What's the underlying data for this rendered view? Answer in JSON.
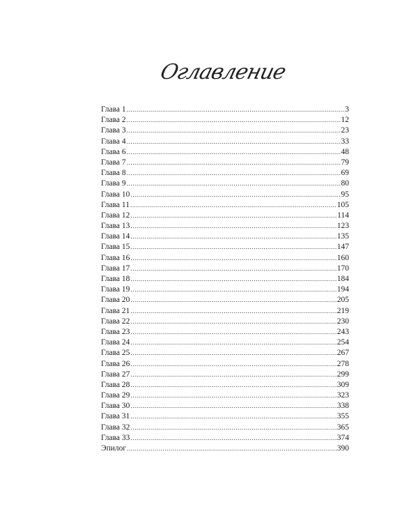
{
  "title": "Оглавление",
  "entries": [
    {
      "label": "Глава 1",
      "page": "3"
    },
    {
      "label": "Глава 2",
      "page": "12"
    },
    {
      "label": "Глава 3",
      "page": "23"
    },
    {
      "label": "Глава 4",
      "page": "33"
    },
    {
      "label": "Глава 6",
      "page": "48"
    },
    {
      "label": "Глава 7",
      "page": "79"
    },
    {
      "label": "Глава 8",
      "page": "69"
    },
    {
      "label": "Глава 9",
      "page": "80"
    },
    {
      "label": "Глава 10",
      "page": "95"
    },
    {
      "label": "Глава 11",
      "page": "105"
    },
    {
      "label": "Глава 12",
      "page": "114"
    },
    {
      "label": "Глава 13",
      "page": "123"
    },
    {
      "label": "Глава 14",
      "page": "135"
    },
    {
      "label": "Глава 15",
      "page": "147"
    },
    {
      "label": "Глава 16",
      "page": "160"
    },
    {
      "label": "Глава 17",
      "page": "170"
    },
    {
      "label": "Глава 18",
      "page": "184"
    },
    {
      "label": "Глава 19",
      "page": "194"
    },
    {
      "label": "Глава 20",
      "page": "205"
    },
    {
      "label": "Глава 21",
      "page": "219"
    },
    {
      "label": "Глава 22",
      "page": "230"
    },
    {
      "label": "Глава 23",
      "page": "243"
    },
    {
      "label": "Глава 24",
      "page": "254"
    },
    {
      "label": "Глава 25",
      "page": "267"
    },
    {
      "label": "Глава 26",
      "page": "278"
    },
    {
      "label": "Глава 27",
      "page": "299"
    },
    {
      "label": "Глава 28",
      "page": "309"
    },
    {
      "label": "Глава 29",
      "page": "323"
    },
    {
      "label": "Глава 30",
      "page": "338"
    },
    {
      "label": "Глава 31",
      "page": "355"
    },
    {
      "label": "Глава 32",
      "page": "365"
    },
    {
      "label": "Глава 33",
      "page": "374"
    },
    {
      "label": "Эпилог",
      "page": "390"
    }
  ]
}
